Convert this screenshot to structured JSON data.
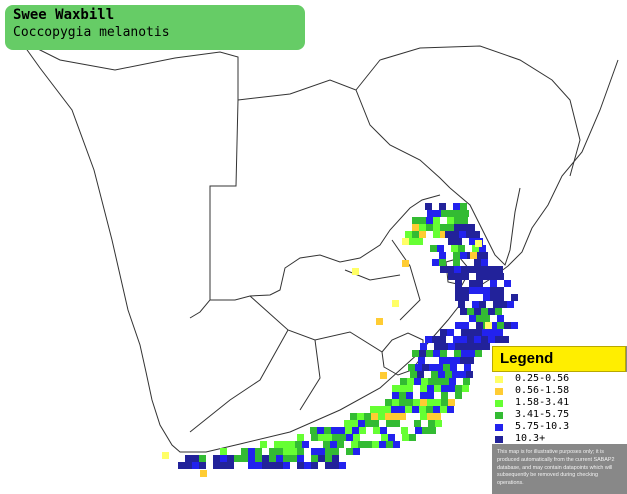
{
  "title": {
    "common_name": "Swee Waxbill",
    "scientific_name": "Coccopygia melanotis"
  },
  "legend": {
    "title": "Legend",
    "entries": [
      {
        "label": "0.25-0.56",
        "color": "#ffff66"
      },
      {
        "label": "0.56-1.58",
        "color": "#ffcc33"
      },
      {
        "label": "1.58-3.41",
        "color": "#66ff33"
      },
      {
        "label": "3.41-5.75",
        "color": "#33bb33"
      },
      {
        "label": "5.75-10.3",
        "color": "#2222ee"
      },
      {
        "label": "10.3+",
        "color": "#22229a"
      }
    ],
    "disclaimer": "This map is for illustrative purposes only; it is produced automatically from the current SABAP2 database, and may contain datapoints which will subsequently be removed during checking operations."
  }
}
